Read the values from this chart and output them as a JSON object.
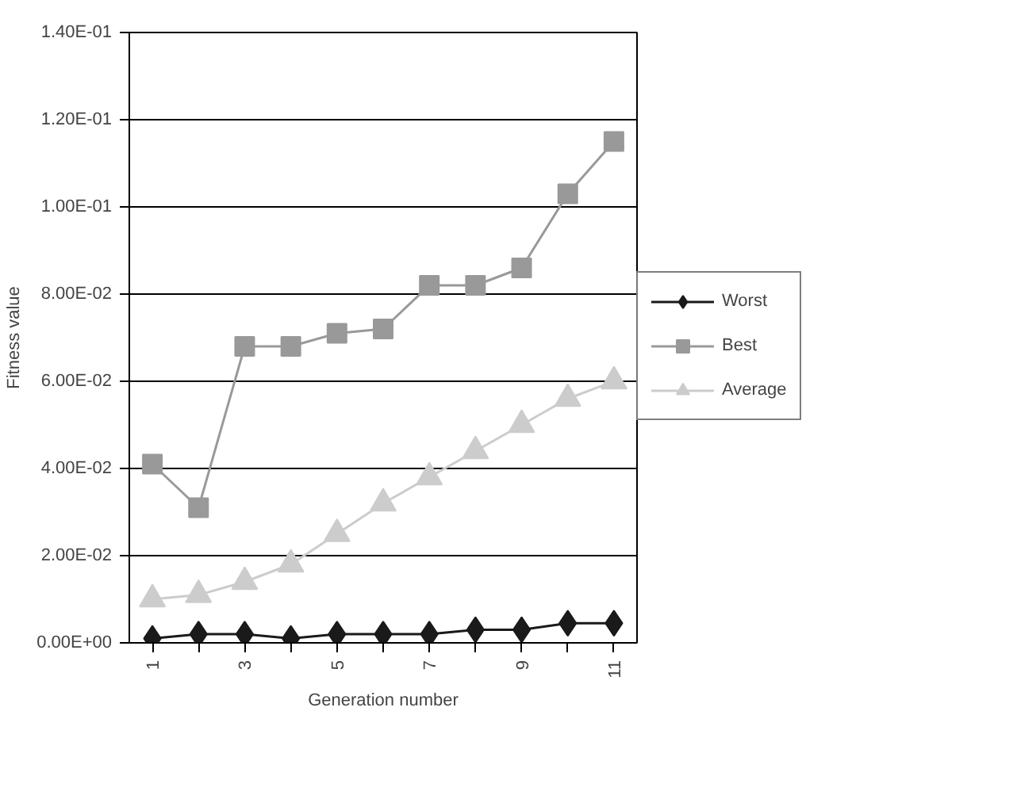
{
  "chart_data": {
    "type": "line",
    "xlabel": "Generation number",
    "ylabel": "Fitness value",
    "categories": [
      "1",
      null,
      "3",
      null,
      "5",
      null,
      "7",
      null,
      "9",
      null,
      "11"
    ],
    "ylim": [
      0,
      0.14
    ],
    "yticks": [
      {
        "value": 0,
        "label": "0.00E+00"
      },
      {
        "value": 0.02,
        "label": "2.00E-02"
      },
      {
        "value": 0.04,
        "label": "4.00E-02"
      },
      {
        "value": 0.06,
        "label": "6.00E-02"
      },
      {
        "value": 0.08,
        "label": "8.00E-02"
      },
      {
        "value": 0.1,
        "label": "1.00E-01"
      },
      {
        "value": 0.12,
        "label": "1.20E-01"
      },
      {
        "value": 0.14,
        "label": "1.40E-01"
      }
    ],
    "grid": "y",
    "legend": "right",
    "series": [
      {
        "name": "Worst",
        "color": "#1a1a1a",
        "marker": "diamond",
        "values": [
          0.001,
          0.002,
          0.002,
          0.001,
          0.002,
          0.002,
          0.002,
          0.003,
          0.003,
          0.0045,
          0.0045
        ]
      },
      {
        "name": "Best",
        "color": "#999999",
        "marker": "square",
        "values": [
          0.041,
          0.031,
          0.068,
          0.068,
          0.071,
          0.072,
          0.082,
          0.082,
          0.086,
          0.103,
          0.115
        ]
      },
      {
        "name": "Average",
        "color": "#cccccc",
        "marker": "triangle",
        "values": [
          0.01,
          0.011,
          0.014,
          0.018,
          0.025,
          0.032,
          0.038,
          0.044,
          0.05,
          0.056,
          0.06
        ]
      }
    ]
  }
}
